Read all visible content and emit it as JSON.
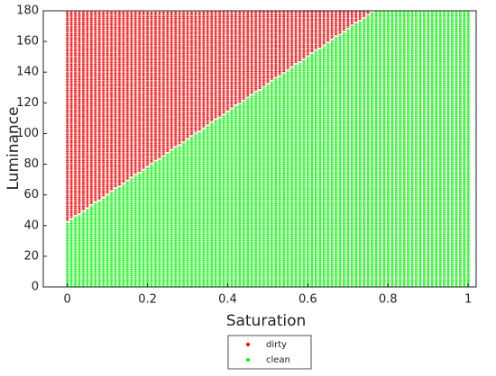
{
  "chart_data": {
    "type": "column-scatter",
    "x_label": "Saturation",
    "y_label": "Luminance",
    "xlim": [
      -0.06,
      1.02
    ],
    "ylim": [
      0,
      180
    ],
    "xticks": [
      0,
      0.2,
      0.4,
      0.6,
      0.8,
      1
    ],
    "yticks": [
      0,
      20,
      40,
      60,
      80,
      100,
      120,
      140,
      160,
      180
    ],
    "legend": "bottom",
    "x": [
      0,
      0.01,
      0.02,
      0.03,
      0.04,
      0.05,
      0.06,
      0.07,
      0.08,
      0.09,
      0.1,
      0.11,
      0.12,
      0.13,
      0.14,
      0.15,
      0.16,
      0.17,
      0.18,
      0.19,
      0.2,
      0.21,
      0.22,
      0.23,
      0.24,
      0.25,
      0.26,
      0.27,
      0.28,
      0.29,
      0.3,
      0.31,
      0.32,
      0.33,
      0.34,
      0.35,
      0.36,
      0.37,
      0.38,
      0.39,
      0.4,
      0.41,
      0.42,
      0.43,
      0.44,
      0.45,
      0.46,
      0.47,
      0.48,
      0.49,
      0.5,
      0.51,
      0.52,
      0.53,
      0.54,
      0.55,
      0.56,
      0.57,
      0.58,
      0.59,
      0.6,
      0.61,
      0.62,
      0.63,
      0.64,
      0.65,
      0.66,
      0.67,
      0.68,
      0.69,
      0.7,
      0.71,
      0.72,
      0.73,
      0.74,
      0.75,
      0.76,
      0.77,
      0.78,
      0.79,
      0.8,
      0.81,
      0.82,
      0.83,
      0.84,
      0.85,
      0.86,
      0.87,
      0.88,
      0.89,
      0.9,
      0.91,
      0.92,
      0.93,
      0.94,
      0.95,
      0.96,
      0.97,
      0.98,
      0.99,
      1
    ],
    "series": [
      {
        "name": "dirty",
        "color": "#ff0000",
        "range": "above",
        "values": [
          43,
          45,
          47,
          48,
          50,
          52,
          54,
          56,
          57,
          59,
          61,
          63,
          65,
          66,
          68,
          70,
          72,
          74,
          75,
          77,
          79,
          81,
          83,
          84,
          86,
          88,
          90,
          92,
          93,
          95,
          97,
          99,
          101,
          102,
          104,
          106,
          108,
          110,
          111,
          113,
          115,
          117,
          119,
          120,
          122,
          124,
          126,
          128,
          129,
          131,
          133,
          135,
          137,
          138,
          140,
          142,
          144,
          146,
          147,
          149,
          151,
          153,
          155,
          156,
          158,
          160,
          162,
          164,
          165,
          167,
          169,
          171,
          173,
          174,
          176,
          178,
          180,
          null,
          null,
          null,
          null,
          null,
          null,
          null,
          null,
          null,
          null,
          null,
          null,
          null,
          null,
          null,
          null,
          null,
          null,
          null,
          null,
          null,
          null,
          null,
          null
        ]
      },
      {
        "name": "clean",
        "color": "#00ff00",
        "range": "below",
        "values": [
          42,
          44,
          46,
          47,
          49,
          51,
          53,
          55,
          56,
          58,
          60,
          62,
          64,
          65,
          67,
          69,
          71,
          73,
          74,
          76,
          78,
          80,
          82,
          83,
          85,
          87,
          89,
          91,
          92,
          94,
          96,
          98,
          100,
          101,
          103,
          105,
          107,
          109,
          110,
          112,
          114,
          116,
          118,
          119,
          121,
          123,
          125,
          127,
          128,
          130,
          132,
          134,
          136,
          137,
          139,
          141,
          143,
          145,
          146,
          148,
          150,
          152,
          154,
          155,
          157,
          159,
          161,
          163,
          164,
          166,
          168,
          170,
          172,
          173,
          175,
          177,
          179,
          180,
          180,
          180,
          180,
          180,
          180,
          180,
          180,
          180,
          180,
          180,
          180,
          180,
          180,
          180,
          180,
          180,
          180,
          180,
          180,
          180,
          180,
          180,
          180
        ]
      }
    ]
  }
}
